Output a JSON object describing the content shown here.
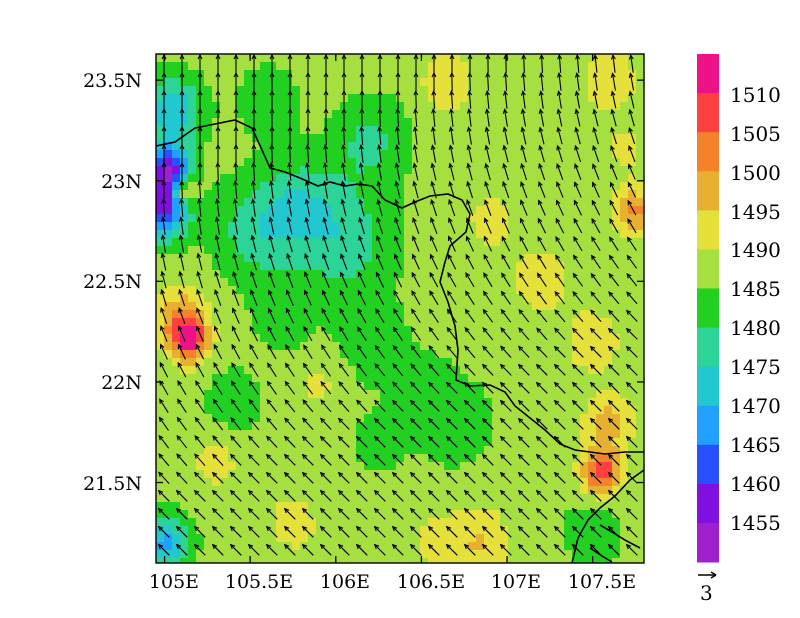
{
  "map": {
    "x_ticks": [
      "105E",
      "105.5E",
      "106E",
      "106.5E",
      "107E",
      "107.5E"
    ],
    "x_tick_values": [
      105,
      105.5,
      106,
      106.5,
      107,
      107.5
    ],
    "y_ticks": [
      "23.5N",
      "23N",
      "22.5N",
      "22N",
      "21.5N"
    ],
    "y_tick_values": [
      23.5,
      23,
      22.5,
      22,
      21.5
    ],
    "lon_range": [
      104.95,
      107.8
    ],
    "lat_range": [
      21.1,
      23.63
    ],
    "field_range": [
      1450,
      1515
    ]
  },
  "colorbar": {
    "labels": [
      "1510",
      "1505",
      "1500",
      "1495",
      "1490",
      "1485",
      "1480",
      "1475",
      "1470",
      "1465",
      "1460",
      "1455"
    ],
    "bins_top_to_bottom": [
      {
        "color": "#ee1188"
      },
      {
        "color": "#ff4040"
      },
      {
        "color": "#f4822a"
      },
      {
        "color": "#e8b030"
      },
      {
        "color": "#e6e03a"
      },
      {
        "color": "#a6e040"
      },
      {
        "color": "#22d022"
      },
      {
        "color": "#2cd498"
      },
      {
        "color": "#22c8d0"
      },
      {
        "color": "#22a0ff"
      },
      {
        "color": "#2850ff"
      },
      {
        "color": "#8010e0"
      },
      {
        "color": "#a020d0"
      }
    ]
  },
  "vector_reference": {
    "label": "3",
    "magnitude": 3
  }
}
